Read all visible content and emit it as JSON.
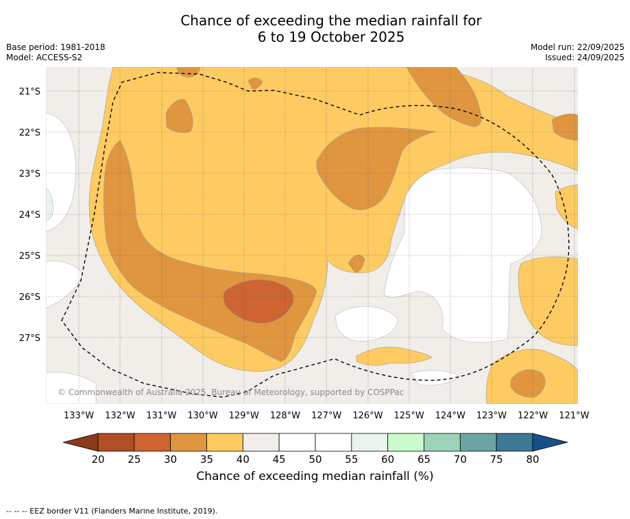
{
  "title_line1": "Chance of exceeding the median rainfall for",
  "title_line2": "6 to 19 October 2025",
  "base_period": "Base period: 1981-2018",
  "model": "Model: ACCESS-S2",
  "model_run": "Model run: 22/09/2025",
  "issued": "Issued: 24/09/2025",
  "copyright": "© Commonwealth of Australia 2025, Bureau of Meteorology, supported by COSPPac",
  "lat_labels": [
    "21°S",
    "22°S",
    "23°S",
    "24°S",
    "25°S",
    "26°S",
    "27°S"
  ],
  "lon_labels": [
    "133°W",
    "132°W",
    "131°W",
    "130°W",
    "129°W",
    "128°W",
    "127°W",
    "126°W",
    "125°W",
    "124°W",
    "123°W",
    "122°W",
    "121°W"
  ],
  "colorbar": {
    "ticks": [
      "20",
      "25",
      "30",
      "35",
      "40",
      "45",
      "50",
      "55",
      "60",
      "65",
      "70",
      "75",
      "80"
    ],
    "colors": [
      "#8b3a1c",
      "#b04e25",
      "#cd6432",
      "#e0963f",
      "#fecb62",
      "#f1ede8",
      "#ffffff",
      "#ffffff",
      "#eaf4ea",
      "#cbfacb",
      "#9dd1b8",
      "#6da3a3",
      "#3d7895",
      "#15508a"
    ],
    "label": "Chance of exceeding median rainfall (%)"
  },
  "footnote": "--  --  -- EEZ border V11 (Flanders Marine Institute, 2019).",
  "chart_data": {
    "type": "heatmap",
    "title": "Chance of exceeding the median rainfall for 6 to 19 October 2025",
    "lon_range": [
      -133.8,
      -120.9
    ],
    "lat_range": [
      -28.6,
      -20.4
    ],
    "xlabel": "",
    "ylabel": "",
    "legend_label": "Chance of exceeding median rainfall (%)",
    "value_range": [
      20,
      80
    ]
  }
}
